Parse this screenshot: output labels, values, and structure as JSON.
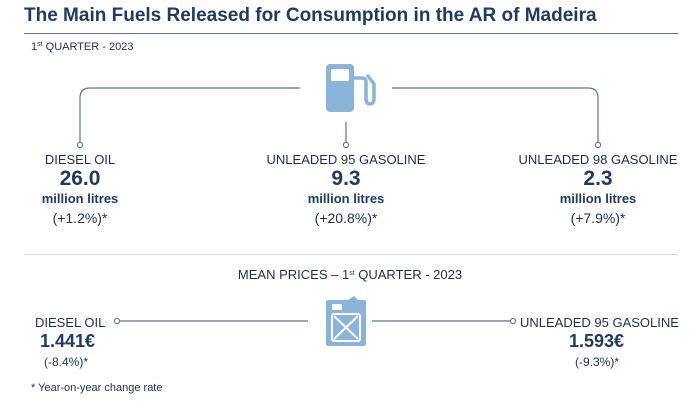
{
  "title": "The Main Fuels Released for Consumption in the AR of Madeira",
  "subtitle": {
    "prefix": "1",
    "sup": "st",
    "rest": " QUARTER - 2023"
  },
  "consumption": [
    {
      "label": "DIESEL OIL",
      "value": "26.0",
      "unit": "million litres",
      "change": "(+1.2%)*"
    },
    {
      "label": "UNLEADED 95 GASOLINE",
      "value": "9.3",
      "unit": "million litres",
      "change": "(+20.8%)*"
    },
    {
      "label": "UNLEADED 98 GASOLINE",
      "value": "2.3",
      "unit": "million litres",
      "change": "(+7.9%)*"
    }
  ],
  "prices": {
    "heading": {
      "prefix": "MEAN PRICES – 1",
      "sup": "st",
      "rest": " QUARTER - 2023"
    },
    "items": [
      {
        "label": "DIESEL OIL",
        "value": "1.441€",
        "change": "(-8.4%)*"
      },
      {
        "label": "UNLEADED 95 GASOLINE",
        "value": "1.593€",
        "change": "(-9.3%)*"
      }
    ]
  },
  "footnote": "* Year-on-year change rate",
  "colors": {
    "accent": "#1f3a64",
    "icon": "#8ab4d8",
    "line": "#5f7190"
  },
  "icons": {
    "top": "fuel-pump-icon",
    "middle": "jerrycan-icon"
  }
}
